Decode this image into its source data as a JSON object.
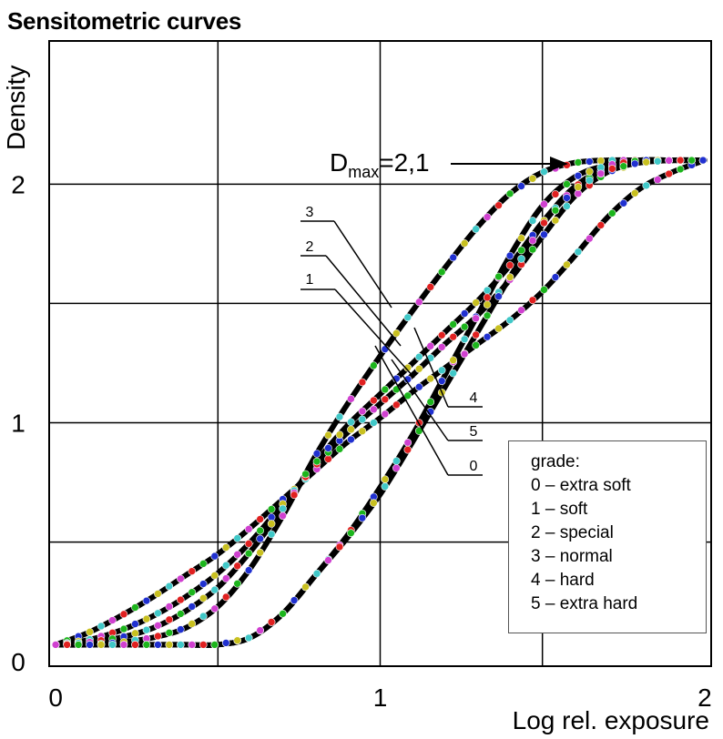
{
  "chart_data": {
    "type": "line",
    "title": "Sensitometric curves",
    "xlabel": "Log rel. exposure",
    "ylabel": "Density",
    "x_ticks": [
      "0",
      "1",
      "2"
    ],
    "y_ticks": [
      "0",
      "1",
      "2"
    ],
    "xlim": [
      -0.02,
      2.02
    ],
    "ylim": [
      -0.02,
      2.6
    ],
    "grid": true,
    "annotation": {
      "text_main": "D",
      "text_sub": "max",
      "text_rest": "=2,1"
    },
    "label_callouts": [
      "3",
      "2",
      "1",
      "4",
      "5",
      "0"
    ],
    "legend": {
      "title": "grade:",
      "entries": [
        "0 – extra soft",
        "1 – soft",
        "2 – special",
        "3 – normal",
        "4 – hard",
        "5 – extra hard"
      ],
      "placement": "bottom-right"
    },
    "marker_colors": [
      "#e02020",
      "#1cb51c",
      "#2030d0",
      "#c8c020",
      "#40c8c8",
      "#d040d0"
    ],
    "series": [
      {
        "name": "0",
        "x": [
          0.0,
          0.1,
          0.2,
          0.3,
          0.4,
          0.5,
          0.6,
          0.7,
          0.8,
          0.9,
          1.0,
          1.1,
          1.2,
          1.3,
          1.4,
          1.5,
          1.6,
          1.7,
          1.8,
          1.9,
          2.0
        ],
        "y": [
          0.07,
          0.12,
          0.19,
          0.27,
          0.36,
          0.45,
          0.56,
          0.68,
          0.8,
          0.92,
          1.02,
          1.13,
          1.23,
          1.33,
          1.43,
          1.55,
          1.7,
          1.86,
          1.98,
          2.05,
          2.1
        ]
      },
      {
        "name": "1",
        "x": [
          0.0,
          0.1,
          0.2,
          0.3,
          0.4,
          0.5,
          0.6,
          0.7,
          0.8,
          0.9,
          1.0,
          1.1,
          1.2,
          1.3,
          1.4,
          1.5,
          1.6,
          1.7,
          1.8,
          1.9,
          2.0
        ],
        "y": [
          0.07,
          0.09,
          0.13,
          0.19,
          0.27,
          0.37,
          0.5,
          0.66,
          0.82,
          0.96,
          1.08,
          1.2,
          1.33,
          1.45,
          1.6,
          1.78,
          1.95,
          2.05,
          2.09,
          2.1,
          2.1
        ]
      },
      {
        "name": "2",
        "x": [
          0.0,
          0.1,
          0.2,
          0.3,
          0.4,
          0.5,
          0.6,
          0.7,
          0.8,
          0.9,
          1.0,
          1.1,
          1.2,
          1.3,
          1.4,
          1.5,
          1.6,
          1.7,
          1.8,
          1.9,
          2.0
        ],
        "y": [
          0.07,
          0.08,
          0.1,
          0.14,
          0.21,
          0.31,
          0.46,
          0.64,
          0.83,
          0.99,
          1.12,
          1.25,
          1.38,
          1.51,
          1.66,
          1.84,
          1.99,
          2.07,
          2.1,
          2.1,
          2.1
        ]
      },
      {
        "name": "3",
        "x": [
          0.0,
          0.1,
          0.2,
          0.3,
          0.4,
          0.5,
          0.6,
          0.7,
          0.8,
          0.9,
          1.0,
          1.1,
          1.2,
          1.3,
          1.4,
          1.5,
          1.6,
          1.7,
          1.8,
          1.9,
          2.0
        ],
        "y": [
          0.07,
          0.07,
          0.08,
          0.1,
          0.14,
          0.23,
          0.39,
          0.61,
          0.86,
          1.08,
          1.28,
          1.47,
          1.65,
          1.82,
          1.96,
          2.05,
          2.09,
          2.1,
          2.1,
          2.1,
          2.1
        ]
      },
      {
        "name": "4",
        "x": [
          0.0,
          0.1,
          0.2,
          0.3,
          0.4,
          0.5,
          0.6,
          0.7,
          0.8,
          0.9,
          1.0,
          1.1,
          1.2,
          1.3,
          1.4,
          1.5,
          1.6,
          1.7,
          1.8,
          1.9,
          2.0
        ],
        "y": [
          0.07,
          0.07,
          0.07,
          0.07,
          0.07,
          0.07,
          0.1,
          0.2,
          0.36,
          0.53,
          0.73,
          0.95,
          1.2,
          1.45,
          1.7,
          1.91,
          2.03,
          2.08,
          2.1,
          2.1,
          2.1
        ]
      },
      {
        "name": "5",
        "x": [
          0.0,
          0.1,
          0.2,
          0.3,
          0.4,
          0.5,
          0.6,
          0.7,
          0.8,
          0.9,
          1.0,
          1.1,
          1.2,
          1.3,
          1.4,
          1.5,
          1.6,
          1.7,
          1.8,
          1.9,
          2.0
        ],
        "y": [
          0.07,
          0.07,
          0.07,
          0.07,
          0.07,
          0.07,
          0.1,
          0.2,
          0.36,
          0.52,
          0.7,
          0.92,
          1.15,
          1.38,
          1.61,
          1.83,
          1.98,
          2.06,
          2.09,
          2.1,
          2.1
        ]
      }
    ]
  }
}
